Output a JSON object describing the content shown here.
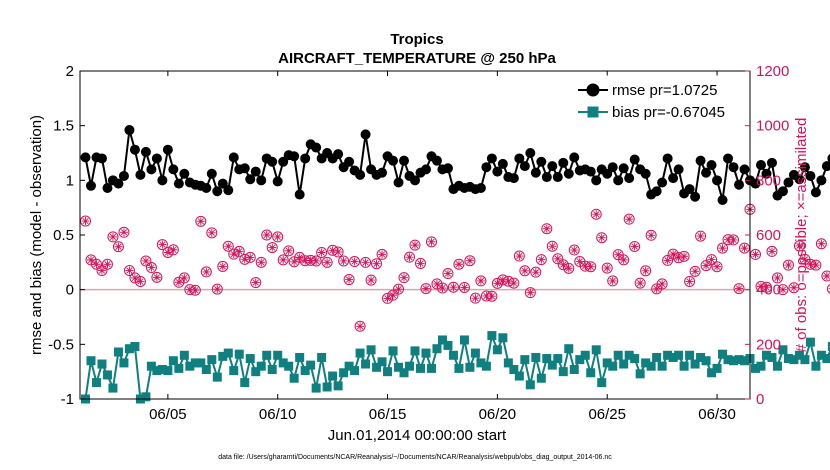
{
  "chart_data": {
    "type": "line",
    "title": "Tropics",
    "subtitle": "AIRCRAFT_TEMPERATURE @ 250 hPa",
    "xlabel": "Jun.01,2014 00:00:00 start",
    "ylabel_left": "rmse and bias (model - observation)",
    "ylabel_right": "# of obs: o=possible; ×=assimilated",
    "xlim_days": [
      1.0,
      31.5
    ],
    "ylim_left": [
      -1,
      2
    ],
    "ylim_right": [
      0,
      1200
    ],
    "x_ticks": [
      {
        "day": 5,
        "label": "06/05"
      },
      {
        "day": 10,
        "label": "06/10"
      },
      {
        "day": 15,
        "label": "06/15"
      },
      {
        "day": 20,
        "label": "06/20"
      },
      {
        "day": 25,
        "label": "06/25"
      },
      {
        "day": 30,
        "label": "06/30"
      }
    ],
    "y_ticks_left": [
      {
        "v": -1,
        "label": "-1"
      },
      {
        "v": -0.5,
        "label": "-0.5"
      },
      {
        "v": 0,
        "label": "0"
      },
      {
        "v": 0.5,
        "label": "0.5"
      },
      {
        "v": 1,
        "label": "1"
      },
      {
        "v": 1.5,
        "label": "1.5"
      },
      {
        "v": 2,
        "label": "2"
      }
    ],
    "y_ticks_right": [
      {
        "v": 0,
        "label": "0"
      },
      {
        "v": 200,
        "label": "200"
      },
      {
        "v": 400,
        "label": "400"
      },
      {
        "v": 600,
        "label": "600"
      },
      {
        "v": 800,
        "label": "800"
      },
      {
        "v": 1000,
        "label": "1000"
      },
      {
        "v": 1200,
        "label": "1200"
      }
    ],
    "interval_days": 0.25,
    "start_day": 1.25,
    "zero_line": 0,
    "legend_position": "top-right",
    "colors": {
      "rmse": "#000000",
      "bias": "#0f7f7f",
      "obs": "#d4145a",
      "zero": "#d9a6b0"
    },
    "series": [
      {
        "name": "rmse pr=1.0725",
        "key": "rmse",
        "axis": "left",
        "values": [
          1.21,
          0.95,
          1.21,
          1.2,
          0.93,
          1.0,
          0.97,
          1.04,
          1.46,
          1.28,
          1.05,
          1.26,
          1.1,
          1.2,
          1.0,
          1.28,
          1.1,
          0.97,
          1.06,
          0.98,
          0.96,
          0.95,
          0.93,
          1.06,
          0.9,
          0.97,
          0.91,
          1.21,
          1.1,
          1.11,
          1.01,
          1.08,
          1.0,
          1.2,
          1.17,
          0.99,
          1.17,
          1.23,
          1.22,
          0.87,
          1.2,
          1.33,
          1.3,
          1.2,
          1.25,
          1.2,
          1.24,
          1.12,
          1.17,
          1.09,
          1.05,
          1.42,
          1.1,
          1.05,
          1.07,
          1.22,
          1.18,
          0.98,
          1.18,
          1.04,
          1.0,
          1.07,
          1.1,
          1.22,
          1.18,
          1.1,
          1.11,
          0.92,
          0.95,
          0.93,
          0.94,
          0.92,
          0.93,
          1.12,
          1.2,
          1.08,
          1.15,
          1.03,
          1.02,
          1.2,
          1.13,
          1.25,
          1.07,
          1.17,
          1.03,
          1.13,
          1.03,
          1.16,
          1.06,
          1.21,
          1.09,
          1.1,
          1.08,
          1.0,
          1.1,
          1.06,
          1.12,
          1.0,
          1.11,
          1.02,
          1.19,
          1.1,
          1.06,
          0.87,
          0.9,
          0.98,
          1.2,
          1.02,
          1.1,
          0.88,
          0.92,
          0.85,
          1.18,
          1.07,
          1.14,
          1.0,
          0.82,
          1.2,
          1.12,
          0.96,
          1.1,
          1.0,
          0.97,
          1.14,
          1.06,
          1.16,
          0.86,
          0.9,
          0.98,
          1.05,
          1.01,
          1.12,
          1.04,
          0.89,
          1.0,
          1.13,
          1.2,
          1.06,
          1.13,
          1.09,
          1.25,
          0.75,
          1.15,
          1.09,
          1.05,
          1.13,
          0.95,
          1.1,
          0.86,
          1.04,
          0.97,
          0.87,
          0.93,
          0.91,
          0.98,
          1.0,
          1.05,
          1.09,
          1.21,
          1.13,
          1.12,
          1.3,
          1.17
        ]
      },
      {
        "name": "bias pr=-0.67045",
        "key": "bias",
        "axis": "left",
        "values": [
          -1.0,
          -0.65,
          -0.85,
          -0.68,
          -0.78,
          -0.9,
          -0.57,
          -0.67,
          -0.54,
          -0.52,
          -1.0,
          -0.98,
          -0.7,
          -0.74,
          -0.73,
          -0.74,
          -0.65,
          -0.72,
          -0.6,
          -0.7,
          -0.67,
          -0.67,
          -0.73,
          -0.64,
          -0.8,
          -0.61,
          -0.58,
          -0.74,
          -0.59,
          -0.85,
          -0.63,
          -0.75,
          -0.7,
          -0.6,
          -0.73,
          -0.6,
          -0.67,
          -0.7,
          -0.81,
          -0.62,
          -0.74,
          -0.69,
          -0.9,
          -0.62,
          -0.89,
          -0.79,
          -0.88,
          -0.76,
          -0.7,
          -0.74,
          -0.58,
          -0.68,
          -0.55,
          -0.71,
          -0.66,
          -0.75,
          -0.56,
          -0.71,
          -0.76,
          -0.7,
          -0.56,
          -0.72,
          -0.58,
          -0.72,
          -0.54,
          -0.46,
          -0.51,
          -0.6,
          -0.72,
          -0.46,
          -0.71,
          -0.58,
          -0.67,
          -0.7,
          -0.42,
          -0.55,
          -0.44,
          -0.67,
          -0.73,
          -0.79,
          -0.64,
          -0.87,
          -0.62,
          -0.81,
          -0.63,
          -0.69,
          -0.63,
          -0.75,
          -0.54,
          -0.73,
          -0.64,
          -0.6,
          -0.76,
          -0.55,
          -0.85,
          -0.67,
          -0.7,
          -0.6,
          -0.68,
          -0.6,
          -0.63,
          -0.77,
          -0.67,
          -0.7,
          -0.62,
          -0.7,
          -0.6,
          -0.62,
          -0.6,
          -0.7,
          -0.6,
          -0.68,
          -0.62,
          -0.65,
          -0.76,
          -0.72,
          -0.59,
          -0.64,
          -0.65,
          -0.64,
          -0.65,
          -0.63,
          -0.72,
          -0.7,
          -0.6,
          -0.62,
          -0.7,
          -0.55,
          -0.63,
          -0.64,
          -0.6,
          -0.64,
          -0.48,
          -0.7,
          -0.6,
          -0.63,
          -0.52,
          -0.66,
          -0.51,
          -0.7,
          -0.68,
          -0.67,
          -0.78,
          -0.71,
          -0.63,
          -0.81,
          -0.64,
          -0.72,
          -0.44,
          -0.68,
          -0.6,
          -0.75,
          -0.6,
          -0.48,
          -0.64,
          -0.75,
          -0.53,
          -0.68,
          -0.69,
          -0.68,
          -0.63,
          -0.7,
          -0.57,
          -0.72,
          -0.8,
          -0.73,
          -0.67
        ]
      },
      {
        "name": "# of obs",
        "key": "obs",
        "axis": "right",
        "values": [
          651,
          509,
          493,
          470,
          493,
          593,
          557,
          610,
          470,
          443,
          430,
          505,
          481,
          445,
          565,
          536,
          546,
          427,
          443,
          400,
          398,
          650,
          465,
          608,
          402,
          485,
          559,
          530,
          540,
          511,
          518,
          426,
          500,
          600,
          554,
          593,
          509,
          542,
          502,
          518,
          506,
          507,
          505,
          536,
          500,
          544,
          538,
          505,
          437,
          503,
          266,
          500,
          435,
          495,
          529,
          368,
          380,
          402,
          444,
          519,
          563,
          496,
          404,
          575,
          421,
          406,
          459,
          409,
          493,
          408,
          506,
          369,
          432,
          377,
          376,
          423,
          436,
          431,
          424,
          523,
          469,
          389,
          464,
          510,
          623,
          559,
          513,
          491,
          478,
          545,
          503,
          486,
          484,
          676,
          590,
          479,
          432,
          528,
          509,
          658,
          558,
          424,
          469,
          599,
          403,
          421,
          507,
          530,
          517,
          522,
          430,
          467,
          596,
          488,
          510,
          484,
          552,
          583,
          582,
          404,
          552,
          694,
          529,
          412,
          409,
          540,
          443,
          400,
          490,
          407,
          560,
          511,
          493,
          490,
          568,
          450,
          403,
          473,
          550,
          451,
          443,
          489,
          570,
          526,
          484,
          493,
          608,
          420,
          510,
          479,
          511,
          486,
          436,
          517,
          489,
          514,
          454,
          537,
          476,
          513,
          451,
          428,
          492,
          457,
          421,
          464,
          534,
          504
        ]
      }
    ],
    "notes": "data file: /Users/gharamti/Documents/NCAR/Reanalysis/~/Documents/NCAR/Reanalysis/webpub/obs_diag_output_2014-06.nc"
  }
}
